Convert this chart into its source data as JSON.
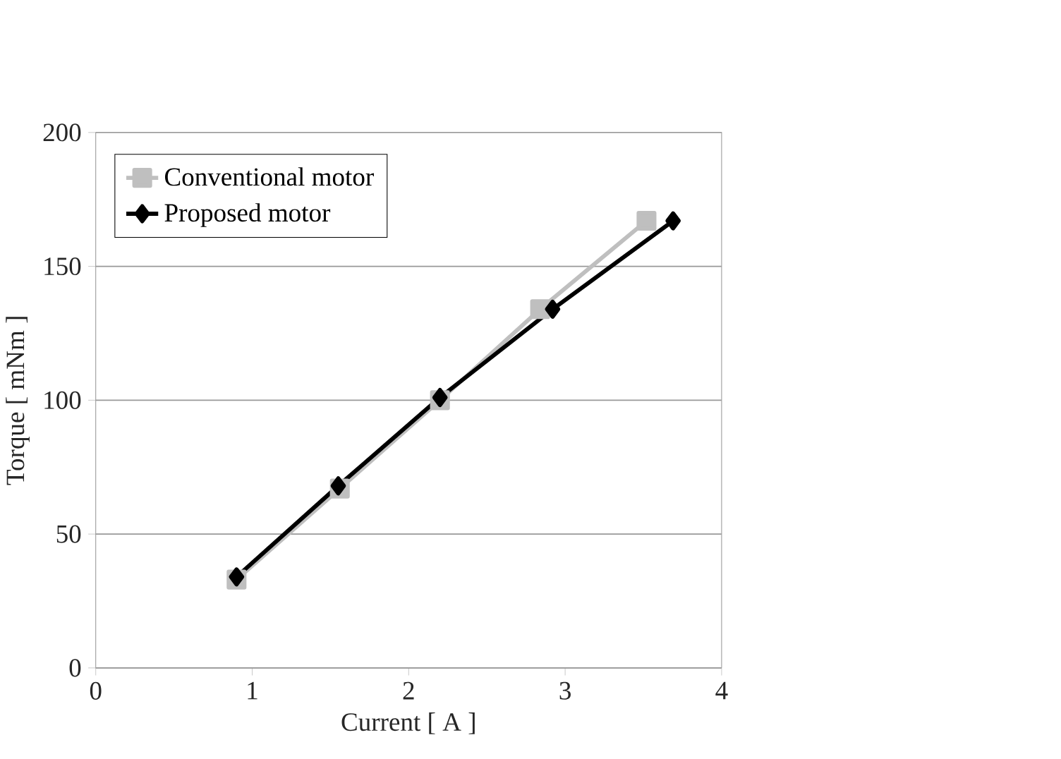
{
  "chart_data": {
    "type": "line",
    "xlabel": "Current [ A ]",
    "ylabel": "Torque [ mNm ]",
    "xlim": [
      0,
      4
    ],
    "ylim": [
      0,
      200
    ],
    "xticks": [
      0,
      1,
      2,
      3,
      4
    ],
    "yticks": [
      0,
      50,
      100,
      150,
      200
    ],
    "grid": "y",
    "legend": "top left",
    "series": [
      {
        "name": "Conventional motor",
        "color": "#bfbfbf",
        "marker": "square",
        "x": [
          0.9,
          1.56,
          2.2,
          2.84,
          3.52
        ],
        "values": [
          33,
          67,
          100,
          134,
          167
        ]
      },
      {
        "name": "Proposed motor",
        "color": "#000000",
        "marker": "diamond",
        "x": [
          0.9,
          1.55,
          2.2,
          2.92,
          3.69
        ],
        "values": [
          34,
          68,
          101,
          134,
          167
        ]
      }
    ]
  }
}
